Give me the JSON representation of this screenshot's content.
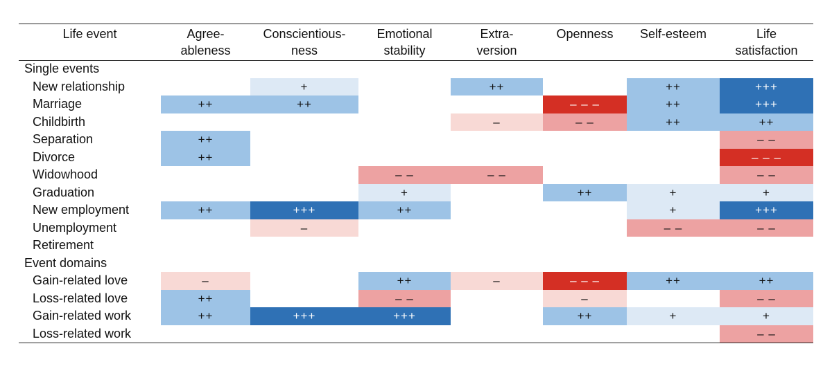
{
  "chart_data": {
    "type": "heatmap",
    "columns": [
      {
        "key": "agree",
        "label": "Agree-\nableness"
      },
      {
        "key": "consc",
        "label": "Conscientious-\nness"
      },
      {
        "key": "emot",
        "label": "Emotional\nstability"
      },
      {
        "key": "extra",
        "label": "Extra-\nversion"
      },
      {
        "key": "open",
        "label": "Openness"
      },
      {
        "key": "selfest",
        "label": "Self-esteem"
      },
      {
        "key": "lifesat",
        "label": "Life\nsatisfaction"
      }
    ],
    "row_header": "Life event",
    "groups": [
      {
        "label": "Single events",
        "rows": [
          {
            "label": "New relationship",
            "values": [
              0,
              1,
              0,
              2,
              0,
              2,
              3
            ]
          },
          {
            "label": "Marriage",
            "values": [
              2,
              2,
              0,
              0,
              -3,
              2,
              3
            ]
          },
          {
            "label": "Childbirth",
            "values": [
              0,
              0,
              0,
              -1,
              -2,
              2,
              2
            ]
          },
          {
            "label": "Separation",
            "values": [
              2,
              0,
              0,
              0,
              0,
              0,
              -2
            ]
          },
          {
            "label": "Divorce",
            "values": [
              2,
              0,
              0,
              0,
              0,
              0,
              -3
            ]
          },
          {
            "label": "Widowhood",
            "values": [
              0,
              0,
              -2,
              -2,
              0,
              0,
              -2
            ]
          },
          {
            "label": "Graduation",
            "values": [
              0,
              0,
              1,
              0,
              2,
              1,
              1
            ]
          },
          {
            "label": "New employment",
            "values": [
              2,
              3,
              2,
              0,
              0,
              1,
              3
            ]
          },
          {
            "label": "Unemployment",
            "values": [
              0,
              -1,
              0,
              0,
              0,
              -2,
              -2
            ]
          },
          {
            "label": "Retirement",
            "values": [
              0,
              0,
              0,
              0,
              0,
              0,
              0
            ]
          }
        ]
      },
      {
        "label": "Event domains",
        "rows": [
          {
            "label": "Gain-related love",
            "values": [
              -1,
              0,
              2,
              -1,
              -3,
              2,
              2
            ]
          },
          {
            "label": "Loss-related love",
            "values": [
              2,
              0,
              -2,
              0,
              -1,
              0,
              -2
            ]
          },
          {
            "label": "Gain-related work",
            "values": [
              2,
              3,
              3,
              0,
              2,
              1,
              1
            ]
          },
          {
            "label": "Loss-related work",
            "values": [
              0,
              0,
              0,
              0,
              0,
              0,
              -2
            ]
          }
        ]
      }
    ],
    "symbols": {
      "3": "+++",
      "2": "++",
      "1": "+",
      "-1": "–",
      "-2": "– –",
      "-3": "– – –"
    },
    "colors": {
      "3": "#2f71b5",
      "2": "#9dc3e6",
      "1": "#dde9f5",
      "-1": "#f8d9d5",
      "-2": "#eda2a2",
      "-3": "#d42f24"
    }
  }
}
